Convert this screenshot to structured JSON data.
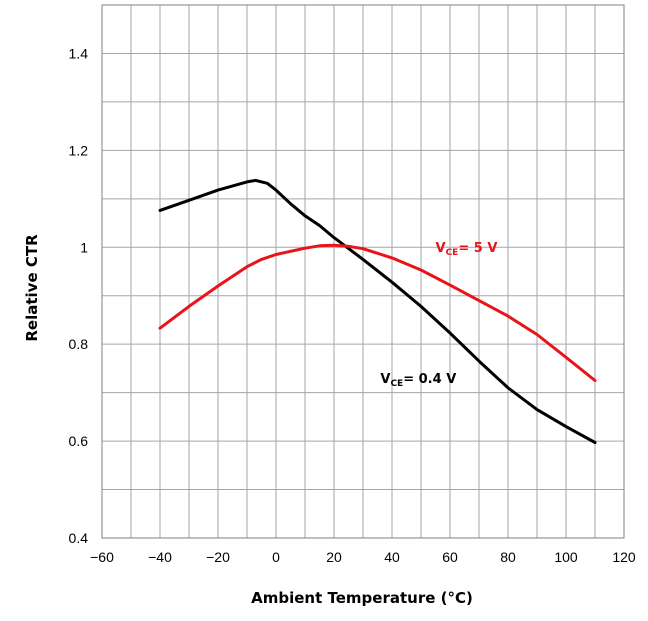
{
  "chart_data": {
    "type": "line",
    "xlabel": "Ambient Temperature (°C)",
    "ylabel": "Relative CTR",
    "xlim": [
      -60,
      120
    ],
    "ylim": [
      0.4,
      1.5
    ],
    "x_ticks": [
      -60,
      -40,
      -20,
      0,
      20,
      40,
      60,
      80,
      100,
      120
    ],
    "y_ticks": [
      0.4,
      0.6,
      0.8,
      1,
      1.2,
      1.4
    ],
    "y_tick_labels": [
      "0.4",
      "0.6",
      "0.8",
      "1",
      "1.2",
      "1.4"
    ],
    "grid": true,
    "series": [
      {
        "name": "VCE= 0.4 V",
        "label_main": "V",
        "label_sub": "CE",
        "label_rest": "= 0.4 V",
        "label_at": [
          36,
          0.72
        ],
        "color": "#000000",
        "x": [
          -40,
          -30,
          -20,
          -10,
          -7,
          -3,
          0,
          5,
          10,
          15,
          20,
          30,
          40,
          50,
          60,
          70,
          80,
          90,
          100,
          110
        ],
        "y": [
          1.076,
          1.097,
          1.118,
          1.135,
          1.138,
          1.132,
          1.118,
          1.09,
          1.065,
          1.045,
          1.02,
          0.975,
          0.928,
          0.878,
          0.823,
          0.765,
          0.71,
          0.665,
          0.63,
          0.597
        ]
      },
      {
        "name": "VCE= 5 V",
        "label_main": "V",
        "label_sub": "CE",
        "label_rest": "= 5 V",
        "label_at": [
          55,
          0.99
        ],
        "color": "#e8141b",
        "x": [
          -40,
          -30,
          -20,
          -10,
          -5,
          0,
          10,
          15,
          20,
          25,
          30,
          40,
          50,
          60,
          70,
          80,
          90,
          100,
          110
        ],
        "y": [
          0.833,
          0.878,
          0.92,
          0.96,
          0.975,
          0.985,
          0.998,
          1.003,
          1.004,
          1.002,
          0.997,
          0.978,
          0.953,
          0.922,
          0.89,
          0.858,
          0.82,
          0.773,
          0.725
        ]
      }
    ]
  }
}
